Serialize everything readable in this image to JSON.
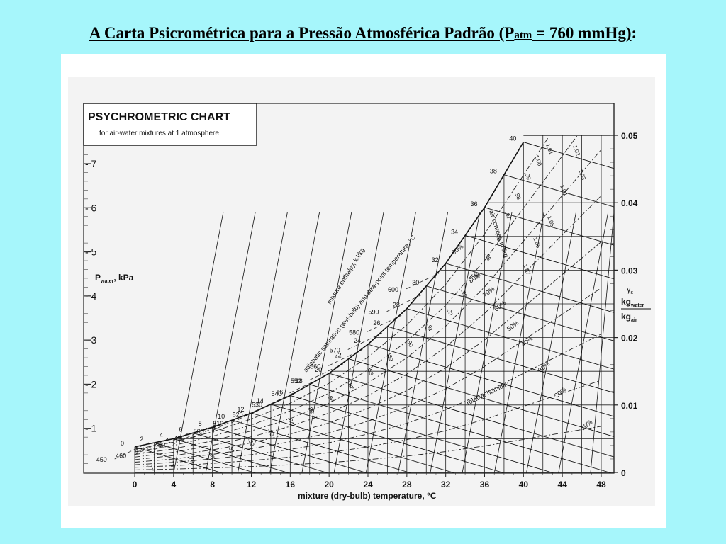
{
  "slide": {
    "title_main": "A Carta Psicrométrica para a Pressão Atmosférica Padrão (P",
    "title_sub": "atm",
    "title_end": " = 760 mmHg)",
    "title_colon": ":"
  },
  "chart_data": {
    "type": "line",
    "title": "PSYCHROMETRIC CHART",
    "subtitle": "for air-water mixtures at 1 atmosphere",
    "xlabel": "mixture (dry-bulb) temperature, °C",
    "x_ticks": [
      0,
      4,
      8,
      12,
      16,
      20,
      24,
      28,
      32,
      36,
      40,
      44,
      48
    ],
    "xlim": [
      0,
      50
    ],
    "left_axis": {
      "label_p": "P",
      "label_sub": "water",
      "label_unit": ", kPa",
      "ticks": [
        1,
        2,
        3,
        4,
        5,
        6,
        7
      ],
      "ylim": [
        0,
        7.5
      ]
    },
    "right_axis": {
      "label_gamma": "γ",
      "label_gamma_sub": "s",
      "label_num": "kg",
      "label_num_sub": "water",
      "label_den": "kg",
      "label_den_sub": "air",
      "ticks": [
        "0",
        "0.01",
        "0.02",
        "0.03",
        "0.04",
        "0.05"
      ],
      "values": [
        0,
        0.01,
        0.02,
        0.03,
        0.04,
        0.05
      ]
    },
    "saturation_curve": {
      "name": "adiabatic saturation (wet-bulb) and dew-point temperature, °C",
      "x": [
        0,
        4,
        8,
        12,
        16,
        20,
        24,
        28,
        32,
        36,
        40
      ],
      "y": [
        0.0038,
        0.005,
        0.0067,
        0.0088,
        0.0114,
        0.0147,
        0.019,
        0.0243,
        0.031,
        0.0393,
        0.049
      ],
      "labels": [
        "0",
        "2",
        "4",
        "6",
        "8",
        "10",
        "12",
        "14",
        "16",
        "18",
        "20",
        "22",
        "24",
        "26",
        "28",
        "30",
        "32",
        "34",
        "36",
        "38",
        "40"
      ]
    },
    "relative_humidity": {
      "name": "relative humidity",
      "levels": [
        0.9,
        0.8,
        0.7,
        0.6,
        0.5,
        0.4,
        0.3,
        0.2,
        0.1
      ],
      "labels": [
        "90%",
        "80%",
        "70%",
        "60%",
        "50%",
        "40%",
        "30%",
        "20%",
        "10%"
      ]
    },
    "enthalpy": {
      "name": "mixture enthalpy, kJ/kg",
      "labels": [
        "450",
        "460",
        "470",
        "480",
        "490",
        "500",
        "510",
        "520",
        "530",
        "540",
        "550",
        "560",
        "570",
        "580",
        "590",
        "600"
      ]
    },
    "humid_volume": {
      "name": "air content, m³/kg",
      "labels": [
        ".77",
        ".78",
        ".79",
        ".80",
        ".81",
        ".82",
        ".83",
        ".84",
        ".85",
        ".86",
        ".87",
        ".88",
        ".89",
        ".90",
        ".91",
        ".92",
        ".93",
        ".94",
        ".95",
        ".96",
        ".97",
        ".98",
        ".99",
        "1.00",
        "1.01",
        "1.02",
        "1.03",
        "1.04",
        "1.05",
        "1.06",
        "1.07"
      ]
    }
  }
}
